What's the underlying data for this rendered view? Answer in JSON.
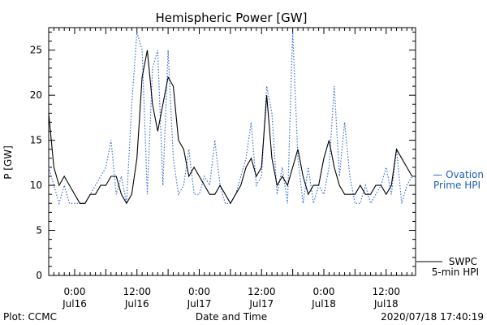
{
  "chart_data": {
    "type": "line",
    "title": "Hemispheric Power [GW]",
    "ylabel": "P [GW]",
    "xlabel": "Date and Time",
    "ylim": [
      0,
      27.5
    ],
    "yticks": [
      0,
      5,
      10,
      15,
      20,
      25
    ],
    "xlim": [
      "2020-07-15 19:00",
      "2020-07-18 17:40"
    ],
    "xticks": [
      {
        "x": "2020-07-16 00:00",
        "time": "0:00",
        "date": "Jul16"
      },
      {
        "x": "2020-07-16 12:00",
        "time": "12:00",
        "date": "Jul16"
      },
      {
        "x": "2020-07-17 00:00",
        "time": "0:00",
        "date": "Jul17"
      },
      {
        "x": "2020-07-17 12:00",
        "time": "12:00",
        "date": "Jul17"
      },
      {
        "x": "2020-07-18 00:00",
        "time": "0:00",
        "date": "Jul18"
      },
      {
        "x": "2020-07-18 12:00",
        "time": "12:00",
        "date": "Jul18"
      }
    ],
    "grid": false,
    "series": [
      {
        "name": "Ovation Prime HPI",
        "style": "dotted",
        "color": "#3a6fd1",
        "x": [
          "2020-07-15 19:00",
          "2020-07-15 20:00",
          "2020-07-15 21:00",
          "2020-07-15 22:00",
          "2020-07-15 23:00",
          "2020-07-16 00:00",
          "2020-07-16 01:00",
          "2020-07-16 02:00",
          "2020-07-16 03:00",
          "2020-07-16 04:00",
          "2020-07-16 05:00",
          "2020-07-16 06:00",
          "2020-07-16 07:00",
          "2020-07-16 08:00",
          "2020-07-16 09:00",
          "2020-07-16 10:00",
          "2020-07-16 11:00",
          "2020-07-16 12:00",
          "2020-07-16 13:00",
          "2020-07-16 14:00",
          "2020-07-16 15:00",
          "2020-07-16 16:00",
          "2020-07-16 17:00",
          "2020-07-16 18:00",
          "2020-07-16 19:00",
          "2020-07-16 20:00",
          "2020-07-16 21:00",
          "2020-07-16 22:00",
          "2020-07-16 23:00",
          "2020-07-17 00:00",
          "2020-07-17 01:00",
          "2020-07-17 02:00",
          "2020-07-17 03:00",
          "2020-07-17 04:00",
          "2020-07-17 05:00",
          "2020-07-17 06:00",
          "2020-07-17 07:00",
          "2020-07-17 08:00",
          "2020-07-17 09:00",
          "2020-07-17 10:00",
          "2020-07-17 11:00",
          "2020-07-17 12:00",
          "2020-07-17 13:00",
          "2020-07-17 14:00",
          "2020-07-17 15:00",
          "2020-07-17 16:00",
          "2020-07-17 17:00",
          "2020-07-17 18:00",
          "2020-07-17 19:00",
          "2020-07-17 20:00",
          "2020-07-17 21:00",
          "2020-07-17 22:00",
          "2020-07-17 23:00",
          "2020-07-18 00:00",
          "2020-07-18 01:00",
          "2020-07-18 02:00",
          "2020-07-18 03:00",
          "2020-07-18 04:00",
          "2020-07-18 05:00",
          "2020-07-18 06:00",
          "2020-07-18 07:00",
          "2020-07-18 08:00",
          "2020-07-18 09:00",
          "2020-07-18 10:00",
          "2020-07-18 11:00",
          "2020-07-18 12:00",
          "2020-07-18 13:00",
          "2020-07-18 14:00",
          "2020-07-18 15:00",
          "2020-07-18 16:00",
          "2020-07-18 17:00"
        ],
        "y": [
          12,
          10,
          8,
          10,
          8,
          8,
          8,
          8,
          9,
          10,
          11,
          12,
          15,
          9,
          11,
          8,
          19,
          27,
          25,
          9,
          23,
          25,
          10,
          25,
          13,
          9,
          10,
          14,
          9,
          9,
          11,
          10,
          15,
          10,
          8,
          8,
          9,
          11,
          13,
          17,
          10,
          11,
          21,
          18,
          9,
          12,
          8,
          27,
          13,
          8,
          12,
          8,
          10,
          9,
          12,
          21,
          11,
          17,
          11,
          8,
          8,
          10,
          8,
          9,
          10,
          12,
          9,
          14,
          8,
          10,
          11
        ]
      },
      {
        "name": "SWPC 5-min HPI",
        "style": "solid",
        "color": "#000000",
        "x": [
          "2020-07-15 19:00",
          "2020-07-15 20:00",
          "2020-07-15 21:00",
          "2020-07-15 22:00",
          "2020-07-15 23:00",
          "2020-07-16 00:00",
          "2020-07-16 01:00",
          "2020-07-16 02:00",
          "2020-07-16 03:00",
          "2020-07-16 04:00",
          "2020-07-16 05:00",
          "2020-07-16 06:00",
          "2020-07-16 07:00",
          "2020-07-16 08:00",
          "2020-07-16 09:00",
          "2020-07-16 10:00",
          "2020-07-16 11:00",
          "2020-07-16 12:00",
          "2020-07-16 13:00",
          "2020-07-16 14:00",
          "2020-07-16 15:00",
          "2020-07-16 16:00",
          "2020-07-16 17:00",
          "2020-07-16 18:00",
          "2020-07-16 19:00",
          "2020-07-16 20:00",
          "2020-07-16 21:00",
          "2020-07-16 22:00",
          "2020-07-16 23:00",
          "2020-07-17 00:00",
          "2020-07-17 01:00",
          "2020-07-17 02:00",
          "2020-07-17 03:00",
          "2020-07-17 04:00",
          "2020-07-17 05:00",
          "2020-07-17 06:00",
          "2020-07-17 07:00",
          "2020-07-17 08:00",
          "2020-07-17 09:00",
          "2020-07-17 10:00",
          "2020-07-17 11:00",
          "2020-07-17 12:00",
          "2020-07-17 13:00",
          "2020-07-17 14:00",
          "2020-07-17 15:00",
          "2020-07-17 16:00",
          "2020-07-17 17:00",
          "2020-07-17 18:00",
          "2020-07-17 19:00",
          "2020-07-17 20:00",
          "2020-07-17 21:00",
          "2020-07-17 22:00",
          "2020-07-17 23:00",
          "2020-07-18 00:00",
          "2020-07-18 01:00",
          "2020-07-18 02:00",
          "2020-07-18 03:00",
          "2020-07-18 04:00",
          "2020-07-18 05:00",
          "2020-07-18 06:00",
          "2020-07-18 07:00",
          "2020-07-18 08:00",
          "2020-07-18 09:00",
          "2020-07-18 10:00",
          "2020-07-18 11:00",
          "2020-07-18 12:00",
          "2020-07-18 13:00",
          "2020-07-18 14:00",
          "2020-07-18 15:00",
          "2020-07-18 16:00",
          "2020-07-18 17:00"
        ],
        "y": [
          18,
          12,
          10,
          11,
          10,
          9,
          8,
          8,
          9,
          9,
          10,
          10,
          11,
          11,
          9,
          8,
          9,
          13,
          22,
          25,
          19,
          16,
          19,
          22,
          21,
          15,
          14,
          11,
          12,
          11,
          10,
          9,
          9,
          10,
          9,
          8,
          9,
          10,
          12,
          13,
          11,
          12,
          20,
          13,
          10,
          11,
          10,
          12,
          14,
          11,
          9,
          10,
          10,
          13,
          15,
          12,
          10,
          9,
          9,
          9,
          10,
          9,
          9,
          10,
          10,
          9,
          10,
          14,
          13,
          12,
          11
        ]
      }
    ],
    "legend": {
      "position": "right",
      "items": [
        {
          "text": [
            "— Ovation",
            "Prime HPI"
          ],
          "color": "#1f5fb4"
        },
        {
          "text": [
            "SWPC",
            "5-min HPI"
          ],
          "color": "#000000"
        }
      ]
    },
    "footer_left": "Plot: CCMC",
    "footer_right": "2020/07/18 17:40:19"
  }
}
